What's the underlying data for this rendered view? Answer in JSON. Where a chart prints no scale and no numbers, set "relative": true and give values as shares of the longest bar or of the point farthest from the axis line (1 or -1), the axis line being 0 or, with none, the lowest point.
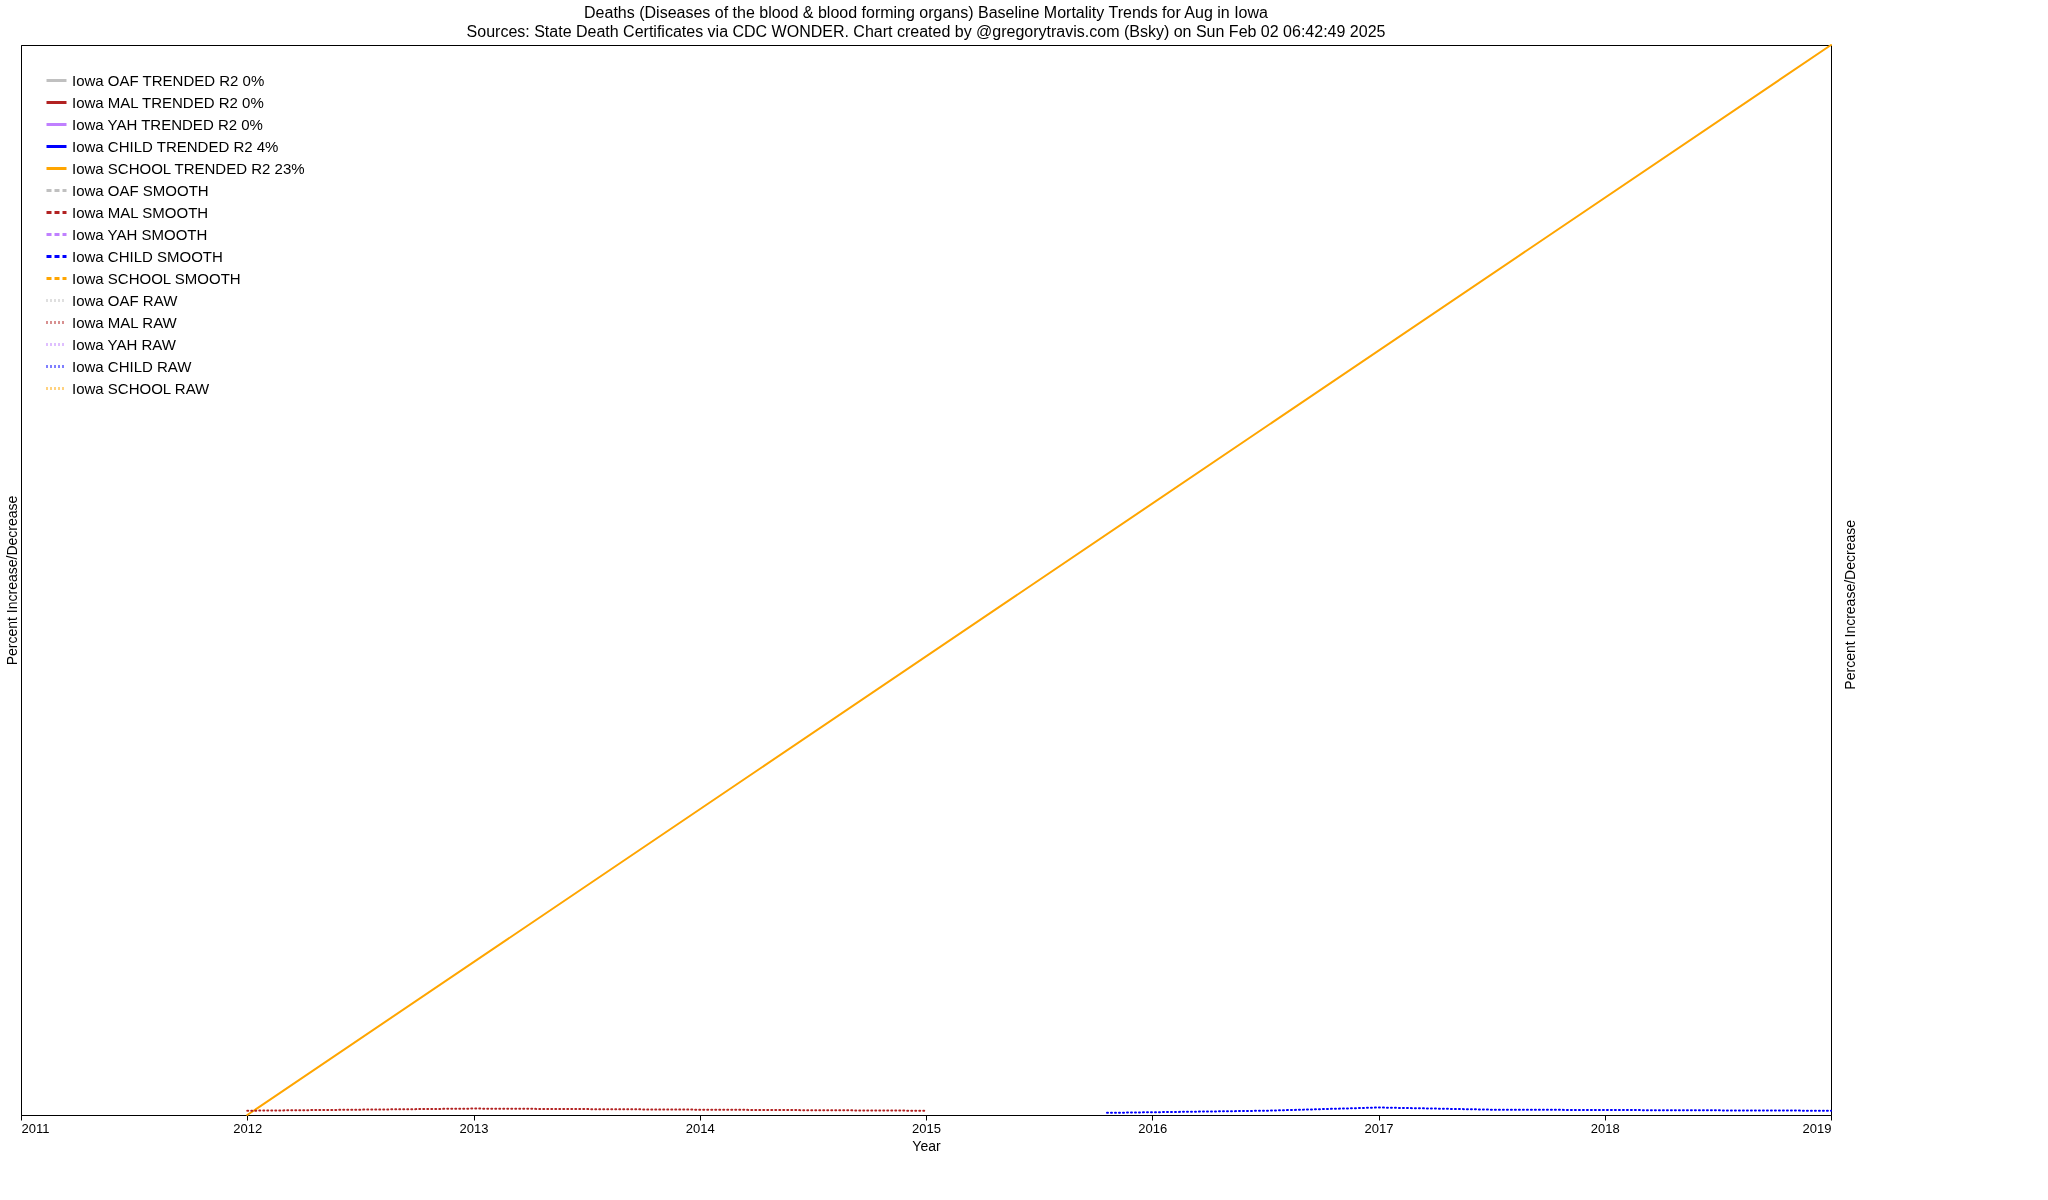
{
  "chart_data": {
    "type": "line",
    "title": "Deaths (Diseases of the blood & blood forming organs)  Baseline Mortality Trends for Aug in Iowa",
    "subtitle": "Sources: State Death Certificates via CDC WONDER.               Chart created by @gregorytravis.com (Bsky) on Sun Feb 02 06:42:49 2025",
    "xlabel": "Year",
    "ylabel": "Percent Increase/Decrease",
    "y2label": "Percent Increase/Decrease",
    "relative": true,
    "xlim": [
      2011,
      2019
    ],
    "xticks": [
      2011,
      2012,
      2013,
      2014,
      2015,
      2016,
      2017,
      2018,
      2019
    ],
    "legend": "top left",
    "series": [
      {
        "name": "Iowa OAF TRENDED R2  0%",
        "color": "#c0c0c0",
        "line_style": "solid"
      },
      {
        "name": "Iowa MAL TRENDED R2  0%",
        "color": "#b22222",
        "line_style": "solid"
      },
      {
        "name": "Iowa YAH TRENDED R2  0%",
        "color": "#c080ff",
        "line_style": "solid"
      },
      {
        "name": "Iowa CHILD TRENDED R2  4%",
        "color": "#0000ff",
        "line_style": "solid"
      },
      {
        "name": "Iowa SCHOOL TRENDED R2  23%",
        "color": "#ffa500",
        "line_style": "solid",
        "x": [
          2012,
          2019
        ],
        "values": [
          0,
          1
        ]
      },
      {
        "name": "Iowa OAF SMOOTH",
        "color": "#c0c0c0",
        "line_style": "dashed"
      },
      {
        "name": "Iowa MAL SMOOTH",
        "color": "#b22222",
        "line_style": "dashed"
      },
      {
        "name": "Iowa YAH SMOOTH",
        "color": "#c080ff",
        "line_style": "dashed"
      },
      {
        "name": "Iowa CHILD SMOOTH",
        "color": "#0000ff",
        "line_style": "dashed"
      },
      {
        "name": "Iowa SCHOOL SMOOTH",
        "color": "#ffa500",
        "line_style": "dashed"
      },
      {
        "name": "Iowa OAF RAW",
        "color": "#c0c0c0",
        "line_style": "dotted"
      },
      {
        "name": "Iowa MAL RAW",
        "color": "#b22222",
        "line_style": "dotted",
        "x": [
          2012,
          2013,
          2015
        ],
        "values": [
          0.004,
          0.006,
          0.004
        ]
      },
      {
        "name": "Iowa YAH RAW",
        "color": "#c080ff",
        "line_style": "dotted"
      },
      {
        "name": "Iowa CHILD RAW",
        "color": "#0000ff",
        "line_style": "dotted",
        "x": [
          2015.8,
          2016.5,
          2017,
          2017.5,
          2019
        ],
        "values": [
          0.002,
          0.004,
          0.007,
          0.005,
          0.004
        ]
      },
      {
        "name": "Iowa SCHOOL RAW",
        "color": "#ffa500",
        "line_style": "dotted"
      }
    ]
  }
}
